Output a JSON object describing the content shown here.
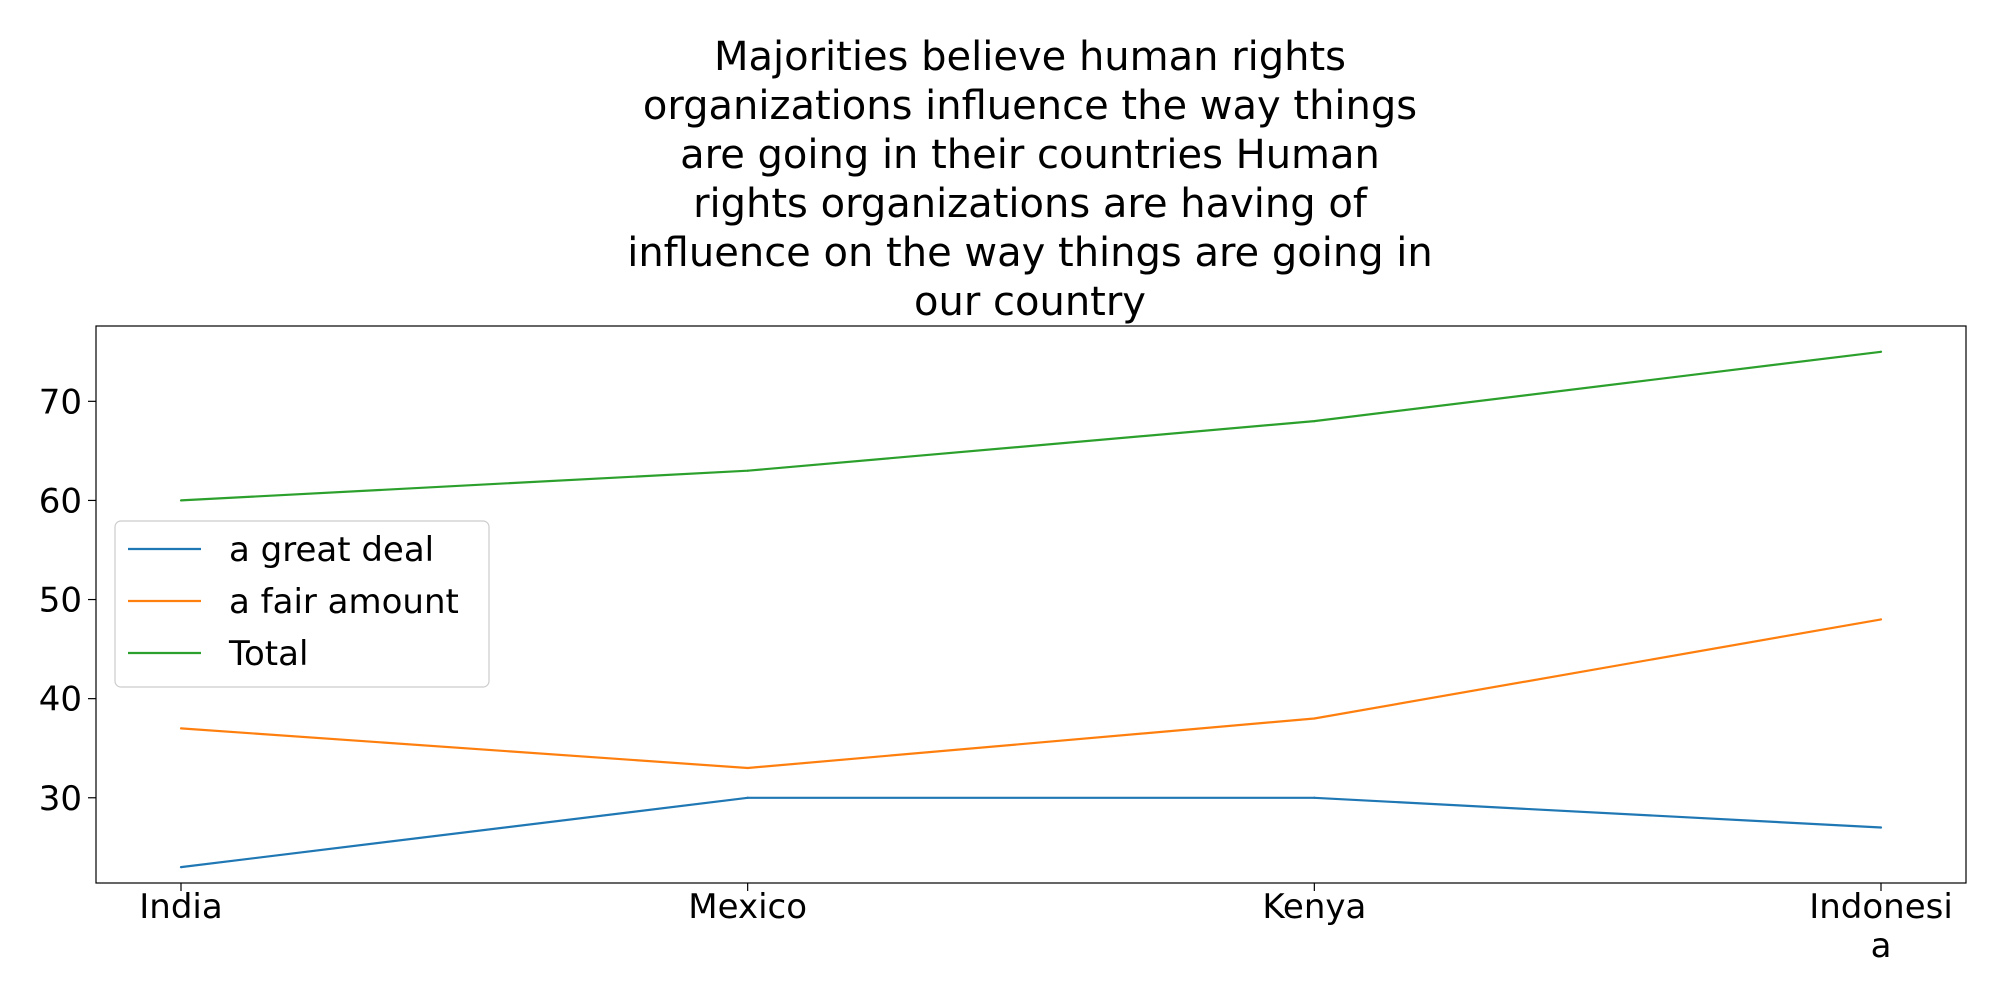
{
  "chart_data": {
    "type": "line",
    "title_lines": [
      "Majorities believe human rights",
      "organizations influence the way things",
      "are going in their countries Human",
      "rights organizations are having of",
      "influence on the way things are going in",
      "our country"
    ],
    "categories": [
      "India",
      "Mexico",
      "Kenya",
      "Indonesia"
    ],
    "category_label_lines": [
      [
        "India"
      ],
      [
        "Mexico"
      ],
      [
        "Kenya"
      ],
      [
        "Indonesi",
        "a"
      ]
    ],
    "series": [
      {
        "name": "a great deal",
        "values": [
          23,
          30,
          30,
          27
        ],
        "color": "#1f77b4"
      },
      {
        "name": "a fair amount",
        "values": [
          37,
          33,
          38,
          48
        ],
        "color": "#ff7f0e"
      },
      {
        "name": "Total",
        "values": [
          60,
          63,
          68,
          75
        ],
        "color": "#2ca02c"
      }
    ],
    "y_ticks": [
      30,
      40,
      50,
      60,
      70
    ],
    "ylim": [
      21.4,
      77.6
    ],
    "grid": false,
    "legend_position": "center-left",
    "xlabel": "",
    "ylabel": ""
  }
}
